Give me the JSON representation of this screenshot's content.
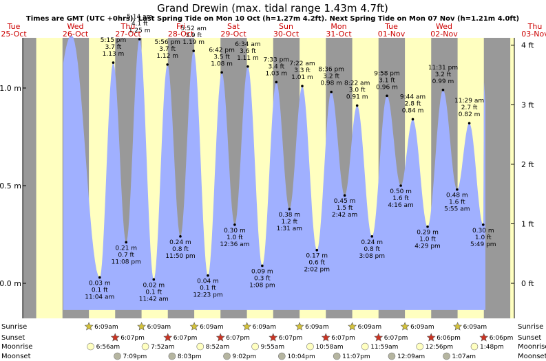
{
  "title": "Grand Drewin (max. tidal range 1.43m 4.7ft)",
  "subtitle": "Times are GMT (UTC +0hrs). Last Spring Tide on Mon 10 Oct (h=1.27m 4.2ft). Next Spring Tide on Mon 07 Nov (h=1.21m 4.0ft)",
  "colors": {
    "night": "#999999",
    "day": "#ffffc0",
    "tide_fill": "#a0b0ff",
    "day_label": "#cc0000",
    "sun_star": "#d4c23a",
    "sunset_star": "#cc3322",
    "moon_rise": "#ffffc0",
    "moon_set": "#b5b5a0"
  },
  "days": [
    {
      "dow": "Tue",
      "date": "25-Oct"
    },
    {
      "dow": "Wed",
      "date": "26-Oct"
    },
    {
      "dow": "Thu",
      "date": "27-Oct"
    },
    {
      "dow": "Fri",
      "date": "28-Oct"
    },
    {
      "dow": "Sat",
      "date": "29-Oct"
    },
    {
      "dow": "Sun",
      "date": "30-Oct"
    },
    {
      "dow": "Mon",
      "date": "31-Oct"
    },
    {
      "dow": "Tue",
      "date": "01-Nov"
    },
    {
      "dow": "Wed",
      "date": "02-Nov"
    },
    {
      "dow": "Thu",
      "date": "03-Nov"
    }
  ],
  "chart_data": {
    "type": "area",
    "y_left_unit": "m",
    "y_left_ticks": [
      "0.0 m",
      "0.5 m",
      "1.0 m"
    ],
    "y_left_values": [
      0.0,
      0.5,
      1.0
    ],
    "y_right_unit": "ft",
    "y_right_ticks": [
      "0 ft",
      "1 ft",
      "2 ft",
      "3 ft",
      "4 ft"
    ],
    "y_right_values": [
      0,
      1,
      2,
      3,
      4
    ],
    "ylim_m": [
      -0.13,
      1.43
    ],
    "xlim_days": [
      0,
      10
    ],
    "first_day": "25-Oct",
    "tides": [
      {
        "day": 0,
        "time": "",
        "m": 1.27,
        "m_text": "",
        "ft_text": "",
        "labeled": false
      },
      {
        "day": 1,
        "time": "11:04 am",
        "m": 0.03,
        "m_text": "0.03 m",
        "ft_text": "0.1 ft",
        "labeled": true
      },
      {
        "day": 1,
        "time": "5:15 pm",
        "m": 1.13,
        "m_text": "1.13 m",
        "ft_text": "3.7 ft",
        "labeled": true
      },
      {
        "day": 1,
        "time": "11:08 pm",
        "m": 0.21,
        "m_text": "0.21 m",
        "ft_text": "0.7 ft",
        "labeled": true
      },
      {
        "day": 2,
        "time": "5:14 am",
        "m": 1.25,
        "m_text": "1.25 m",
        "ft_text": "4.1 ft",
        "labeled": true
      },
      {
        "day": 2,
        "time": "11:42 am",
        "m": 0.02,
        "m_text": "0.02 m",
        "ft_text": "0.1 ft",
        "labeled": true
      },
      {
        "day": 2,
        "time": "5:56 pm",
        "m": 1.12,
        "m_text": "1.12 m",
        "ft_text": "3.7 ft",
        "labeled": true
      },
      {
        "day": 2,
        "time": "11:50 pm",
        "m": 0.24,
        "m_text": "0.24 m",
        "ft_text": "0.8 ft",
        "labeled": true
      },
      {
        "day": 3,
        "time": "5:52 am",
        "m": 1.19,
        "m_text": "1.19 m",
        "ft_text": "3.9 ft",
        "labeled": true
      },
      {
        "day": 3,
        "time": "12:23 pm",
        "m": 0.04,
        "m_text": "0.04 m",
        "ft_text": "0.1 ft",
        "labeled": true
      },
      {
        "day": 3,
        "time": "6:42 pm",
        "m": 1.08,
        "m_text": "1.08 m",
        "ft_text": "3.5 ft",
        "labeled": true
      },
      {
        "day": 4,
        "time": "12:36 am",
        "m": 0.3,
        "m_text": "0.30 m",
        "ft_text": "1.0 ft",
        "labeled": true
      },
      {
        "day": 4,
        "time": "6:34 am",
        "m": 1.11,
        "m_text": "1.11 m",
        "ft_text": "3.6 ft",
        "labeled": true
      },
      {
        "day": 4,
        "time": "1:08 pm",
        "m": 0.09,
        "m_text": "0.09 m",
        "ft_text": "0.3 ft",
        "labeled": true
      },
      {
        "day": 4,
        "time": "7:33 pm",
        "m": 1.03,
        "m_text": "1.03 m",
        "ft_text": "3.4 ft",
        "labeled": true
      },
      {
        "day": 5,
        "time": "1:31 am",
        "m": 0.38,
        "m_text": "0.38 m",
        "ft_text": "1.2 ft",
        "labeled": true
      },
      {
        "day": 5,
        "time": "7:22 am",
        "m": 1.01,
        "m_text": "1.01 m",
        "ft_text": "3.3 ft",
        "labeled": true
      },
      {
        "day": 5,
        "time": "2:02 pm",
        "m": 0.17,
        "m_text": "0.17 m",
        "ft_text": "0.6 ft",
        "labeled": true
      },
      {
        "day": 5,
        "time": "8:36 pm",
        "m": 0.98,
        "m_text": "0.98 m",
        "ft_text": "3.2 ft",
        "labeled": true
      },
      {
        "day": 6,
        "time": "2:42 am",
        "m": 0.45,
        "m_text": "0.45 m",
        "ft_text": "1.5 ft",
        "labeled": true
      },
      {
        "day": 6,
        "time": "8:22 am",
        "m": 0.91,
        "m_text": "0.91 m",
        "ft_text": "3.0 ft",
        "labeled": true
      },
      {
        "day": 6,
        "time": "3:08 pm",
        "m": 0.24,
        "m_text": "0.24 m",
        "ft_text": "0.8 ft",
        "labeled": true
      },
      {
        "day": 6,
        "time": "9:58 pm",
        "m": 0.96,
        "m_text": "0.96 m",
        "ft_text": "3.1 ft",
        "labeled": true
      },
      {
        "day": 7,
        "time": "4:16 am",
        "m": 0.5,
        "m_text": "0.50 m",
        "ft_text": "1.6 ft",
        "labeled": true
      },
      {
        "day": 7,
        "time": "9:44 am",
        "m": 0.84,
        "m_text": "0.84 m",
        "ft_text": "2.8 ft",
        "labeled": true
      },
      {
        "day": 7,
        "time": "4:29 pm",
        "m": 0.29,
        "m_text": "0.29 m",
        "ft_text": "1.0 ft",
        "labeled": true
      },
      {
        "day": 7,
        "time": "11:31 pm",
        "m": 0.99,
        "m_text": "0.99 m",
        "ft_text": "3.2 ft",
        "labeled": true
      },
      {
        "day": 8,
        "time": "5:55 am",
        "m": 0.48,
        "m_text": "0.48 m",
        "ft_text": "1.6 ft",
        "labeled": true
      },
      {
        "day": 8,
        "time": "11:29 am",
        "m": 0.82,
        "m_text": "0.82 m",
        "ft_text": "2.7 ft",
        "labeled": true
      },
      {
        "day": 8,
        "time": "5:49 pm",
        "m": 0.3,
        "m_text": "0.30 m",
        "ft_text": "1.0 ft",
        "labeled": true
      },
      {
        "day": 9,
        "time": "",
        "m": 1.03,
        "m_text": "",
        "ft_text": "",
        "labeled": false
      }
    ]
  },
  "rows": {
    "sunrise_label": "Sunrise",
    "sunset_label": "Sunset",
    "moonrise_label": "Moonrise",
    "moonset_label": "Moonset",
    "sunrise": [
      {
        "day": 1,
        "time": "6:09am"
      },
      {
        "day": 2,
        "time": "6:09am"
      },
      {
        "day": 3,
        "time": "6:09am"
      },
      {
        "day": 4,
        "time": "6:09am"
      },
      {
        "day": 5,
        "time": "6:09am"
      },
      {
        "day": 6,
        "time": "6:09am"
      },
      {
        "day": 7,
        "time": "6:09am"
      },
      {
        "day": 8,
        "time": "6:09am"
      }
    ],
    "sunset": [
      {
        "day": 1,
        "time": "6:07pm"
      },
      {
        "day": 2,
        "time": "6:07pm"
      },
      {
        "day": 3,
        "time": "6:07pm"
      },
      {
        "day": 4,
        "time": "6:07pm"
      },
      {
        "day": 5,
        "time": "6:07pm"
      },
      {
        "day": 6,
        "time": "6:07pm"
      },
      {
        "day": 7,
        "time": "6:06pm"
      },
      {
        "day": 8,
        "time": "6:06pm"
      }
    ],
    "moonrise": [
      {
        "day": 1,
        "time": "6:56am"
      },
      {
        "day": 2,
        "time": "7:52am"
      },
      {
        "day": 3,
        "time": "8:52am"
      },
      {
        "day": 4,
        "time": "9:55am"
      },
      {
        "day": 5,
        "time": "10:58am"
      },
      {
        "day": 6,
        "time": "11:59am"
      },
      {
        "day": 7,
        "time": "12:56pm"
      },
      {
        "day": 8,
        "time": "1:48pm"
      }
    ],
    "moonset": [
      {
        "day": 1,
        "time": "7:09pm"
      },
      {
        "day": 2,
        "time": "8:03pm"
      },
      {
        "day": 3,
        "time": "9:02pm"
      },
      {
        "day": 4,
        "time": "10:04pm"
      },
      {
        "day": 5,
        "time": "11:07pm"
      },
      {
        "day": 7,
        "time": "12:09am"
      },
      {
        "day": 8,
        "time": "1:07am"
      }
    ]
  }
}
